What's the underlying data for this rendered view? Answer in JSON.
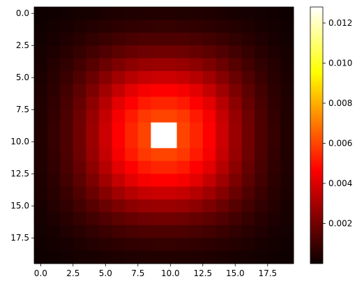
{
  "chart_data": {
    "type": "heatmap",
    "colormap": "hot",
    "grid_size": [
      20,
      20
    ],
    "x_ticks": [
      0,
      2.5,
      5,
      7.5,
      10,
      12.5,
      15,
      17.5
    ],
    "x_tick_labels": [
      "0.0",
      "2.5",
      "5.0",
      "7.5",
      "10.0",
      "12.5",
      "15.0",
      "17.5"
    ],
    "y_ticks": [
      0,
      2.5,
      5,
      7.5,
      10,
      12.5,
      15,
      17.5
    ],
    "y_tick_labels": [
      "0.0",
      "2.5",
      "5.0",
      "7.5",
      "10.0",
      "12.5",
      "15.0",
      "17.5"
    ],
    "colorbar": {
      "vmin": 0.0,
      "vmax": 0.0128,
      "ticks": [
        0.002,
        0.004,
        0.006,
        0.008,
        0.01,
        0.012
      ],
      "tick_labels": [
        "0.002",
        "0.004",
        "0.006",
        "0.008",
        "0.010",
        "0.012"
      ]
    },
    "values": [
      [
        8e-05,
        0.00012,
        0.00016,
        0.00022,
        0.00027,
        0.00032,
        0.00036,
        0.00039,
        0.00041,
        0.00042,
        0.00042,
        0.00041,
        0.00039,
        0.00036,
        0.00032,
        0.00027,
        0.00022,
        0.00016,
        0.00012,
        8e-05
      ],
      [
        0.00012,
        0.00019,
        0.00027,
        0.00036,
        0.00046,
        0.00055,
        0.00063,
        0.00069,
        0.00073,
        0.00075,
        0.00075,
        0.00073,
        0.00069,
        0.00063,
        0.00055,
        0.00046,
        0.00036,
        0.00027,
        0.00019,
        0.00012
      ],
      [
        0.00016,
        0.00027,
        0.0004,
        0.00055,
        0.00071,
        0.00087,
        0.00101,
        0.00112,
        0.00119,
        0.00122,
        0.00122,
        0.00119,
        0.00112,
        0.00101,
        0.00087,
        0.00071,
        0.00055,
        0.0004,
        0.00027,
        0.00016
      ],
      [
        0.00022,
        0.00036,
        0.00055,
        0.00077,
        0.00102,
        0.00127,
        0.0015,
        0.00168,
        0.0018,
        0.00185,
        0.00185,
        0.0018,
        0.00168,
        0.0015,
        0.00127,
        0.00102,
        0.00077,
        0.00055,
        0.00036,
        0.00022
      ],
      [
        0.00027,
        0.00046,
        0.00071,
        0.00102,
        0.00138,
        0.00175,
        0.0021,
        0.00238,
        0.00256,
        0.00264,
        0.00264,
        0.00256,
        0.00238,
        0.0021,
        0.00175,
        0.00138,
        0.00102,
        0.00071,
        0.00046,
        0.00027
      ],
      [
        0.00032,
        0.00055,
        0.00087,
        0.00127,
        0.00175,
        0.00226,
        0.00275,
        0.00315,
        0.00342,
        0.00353,
        0.00353,
        0.00342,
        0.00315,
        0.00275,
        0.00226,
        0.00175,
        0.00127,
        0.00087,
        0.00055,
        0.00032
      ],
      [
        0.00036,
        0.00063,
        0.00101,
        0.0015,
        0.0021,
        0.00275,
        0.0034,
        0.00395,
        0.00432,
        0.00448,
        0.00448,
        0.00432,
        0.00395,
        0.0034,
        0.00275,
        0.0021,
        0.0015,
        0.00101,
        0.00063,
        0.00036
      ],
      [
        0.00039,
        0.00069,
        0.00112,
        0.00168,
        0.00238,
        0.00315,
        0.00395,
        0.00466,
        0.00515,
        0.00536,
        0.00536,
        0.00515,
        0.00466,
        0.00395,
        0.00315,
        0.00238,
        0.00168,
        0.00112,
        0.00069,
        0.00039
      ],
      [
        0.00041,
        0.00073,
        0.00119,
        0.0018,
        0.00256,
        0.00342,
        0.00432,
        0.00515,
        0.00573,
        0.00598,
        0.00598,
        0.00573,
        0.00515,
        0.00432,
        0.00342,
        0.00256,
        0.0018,
        0.00119,
        0.00073,
        0.00041
      ],
      [
        0.00042,
        0.00075,
        0.00122,
        0.00185,
        0.00264,
        0.00353,
        0.00448,
        0.00536,
        0.00598,
        0.0128,
        0.0128,
        0.00598,
        0.00536,
        0.00448,
        0.00353,
        0.00264,
        0.00185,
        0.00122,
        0.00075,
        0.00042
      ],
      [
        0.00042,
        0.00075,
        0.00122,
        0.00185,
        0.00264,
        0.00353,
        0.00448,
        0.00536,
        0.00598,
        0.0128,
        0.0128,
        0.00598,
        0.00536,
        0.00448,
        0.00353,
        0.00264,
        0.00185,
        0.00122,
        0.00075,
        0.00042
      ],
      [
        0.00041,
        0.00073,
        0.00119,
        0.0018,
        0.00256,
        0.00342,
        0.00432,
        0.00515,
        0.00573,
        0.00598,
        0.00598,
        0.00573,
        0.00515,
        0.00432,
        0.00342,
        0.00256,
        0.0018,
        0.00119,
        0.00073,
        0.00041
      ],
      [
        0.00039,
        0.00069,
        0.00112,
        0.00168,
        0.00238,
        0.00315,
        0.00395,
        0.00466,
        0.00515,
        0.00536,
        0.00536,
        0.00515,
        0.00466,
        0.00395,
        0.00315,
        0.00238,
        0.00168,
        0.00112,
        0.00069,
        0.00039
      ],
      [
        0.00036,
        0.00063,
        0.00101,
        0.0015,
        0.0021,
        0.00275,
        0.0034,
        0.00395,
        0.00432,
        0.00448,
        0.00448,
        0.00432,
        0.00395,
        0.0034,
        0.00275,
        0.0021,
        0.0015,
        0.00101,
        0.00063,
        0.00036
      ],
      [
        0.00032,
        0.00055,
        0.00087,
        0.00127,
        0.00175,
        0.00226,
        0.00275,
        0.00315,
        0.00342,
        0.00353,
        0.00353,
        0.00342,
        0.00315,
        0.00275,
        0.00226,
        0.00175,
        0.00127,
        0.00087,
        0.00055,
        0.00032
      ],
      [
        0.00027,
        0.00046,
        0.00071,
        0.00102,
        0.00138,
        0.00175,
        0.0021,
        0.00238,
        0.00256,
        0.00264,
        0.00264,
        0.00256,
        0.00238,
        0.0021,
        0.00175,
        0.00138,
        0.00102,
        0.00071,
        0.00046,
        0.00027
      ],
      [
        0.00022,
        0.00036,
        0.00055,
        0.00077,
        0.00102,
        0.00127,
        0.0015,
        0.00168,
        0.0018,
        0.00185,
        0.00185,
        0.0018,
        0.00168,
        0.0015,
        0.00127,
        0.00102,
        0.00077,
        0.00055,
        0.00036,
        0.00022
      ],
      [
        0.00016,
        0.00027,
        0.0004,
        0.00055,
        0.00071,
        0.00087,
        0.00101,
        0.00112,
        0.00119,
        0.00122,
        0.00122,
        0.00119,
        0.00112,
        0.00101,
        0.00087,
        0.00071,
        0.00055,
        0.0004,
        0.00027,
        0.00016
      ],
      [
        0.00012,
        0.00019,
        0.00027,
        0.00036,
        0.00046,
        0.00055,
        0.00063,
        0.00069,
        0.00073,
        0.00075,
        0.00075,
        0.00073,
        0.00069,
        0.00063,
        0.00055,
        0.00046,
        0.00036,
        0.00027,
        0.00019,
        0.00012
      ],
      [
        8e-05,
        0.00012,
        0.00016,
        0.00022,
        0.00027,
        0.00032,
        0.00036,
        0.00039,
        0.00041,
        0.00042,
        0.00042,
        0.00041,
        0.00039,
        0.00036,
        0.00032,
        0.00027,
        0.00022,
        0.00016,
        0.00012,
        8e-05
      ]
    ]
  }
}
